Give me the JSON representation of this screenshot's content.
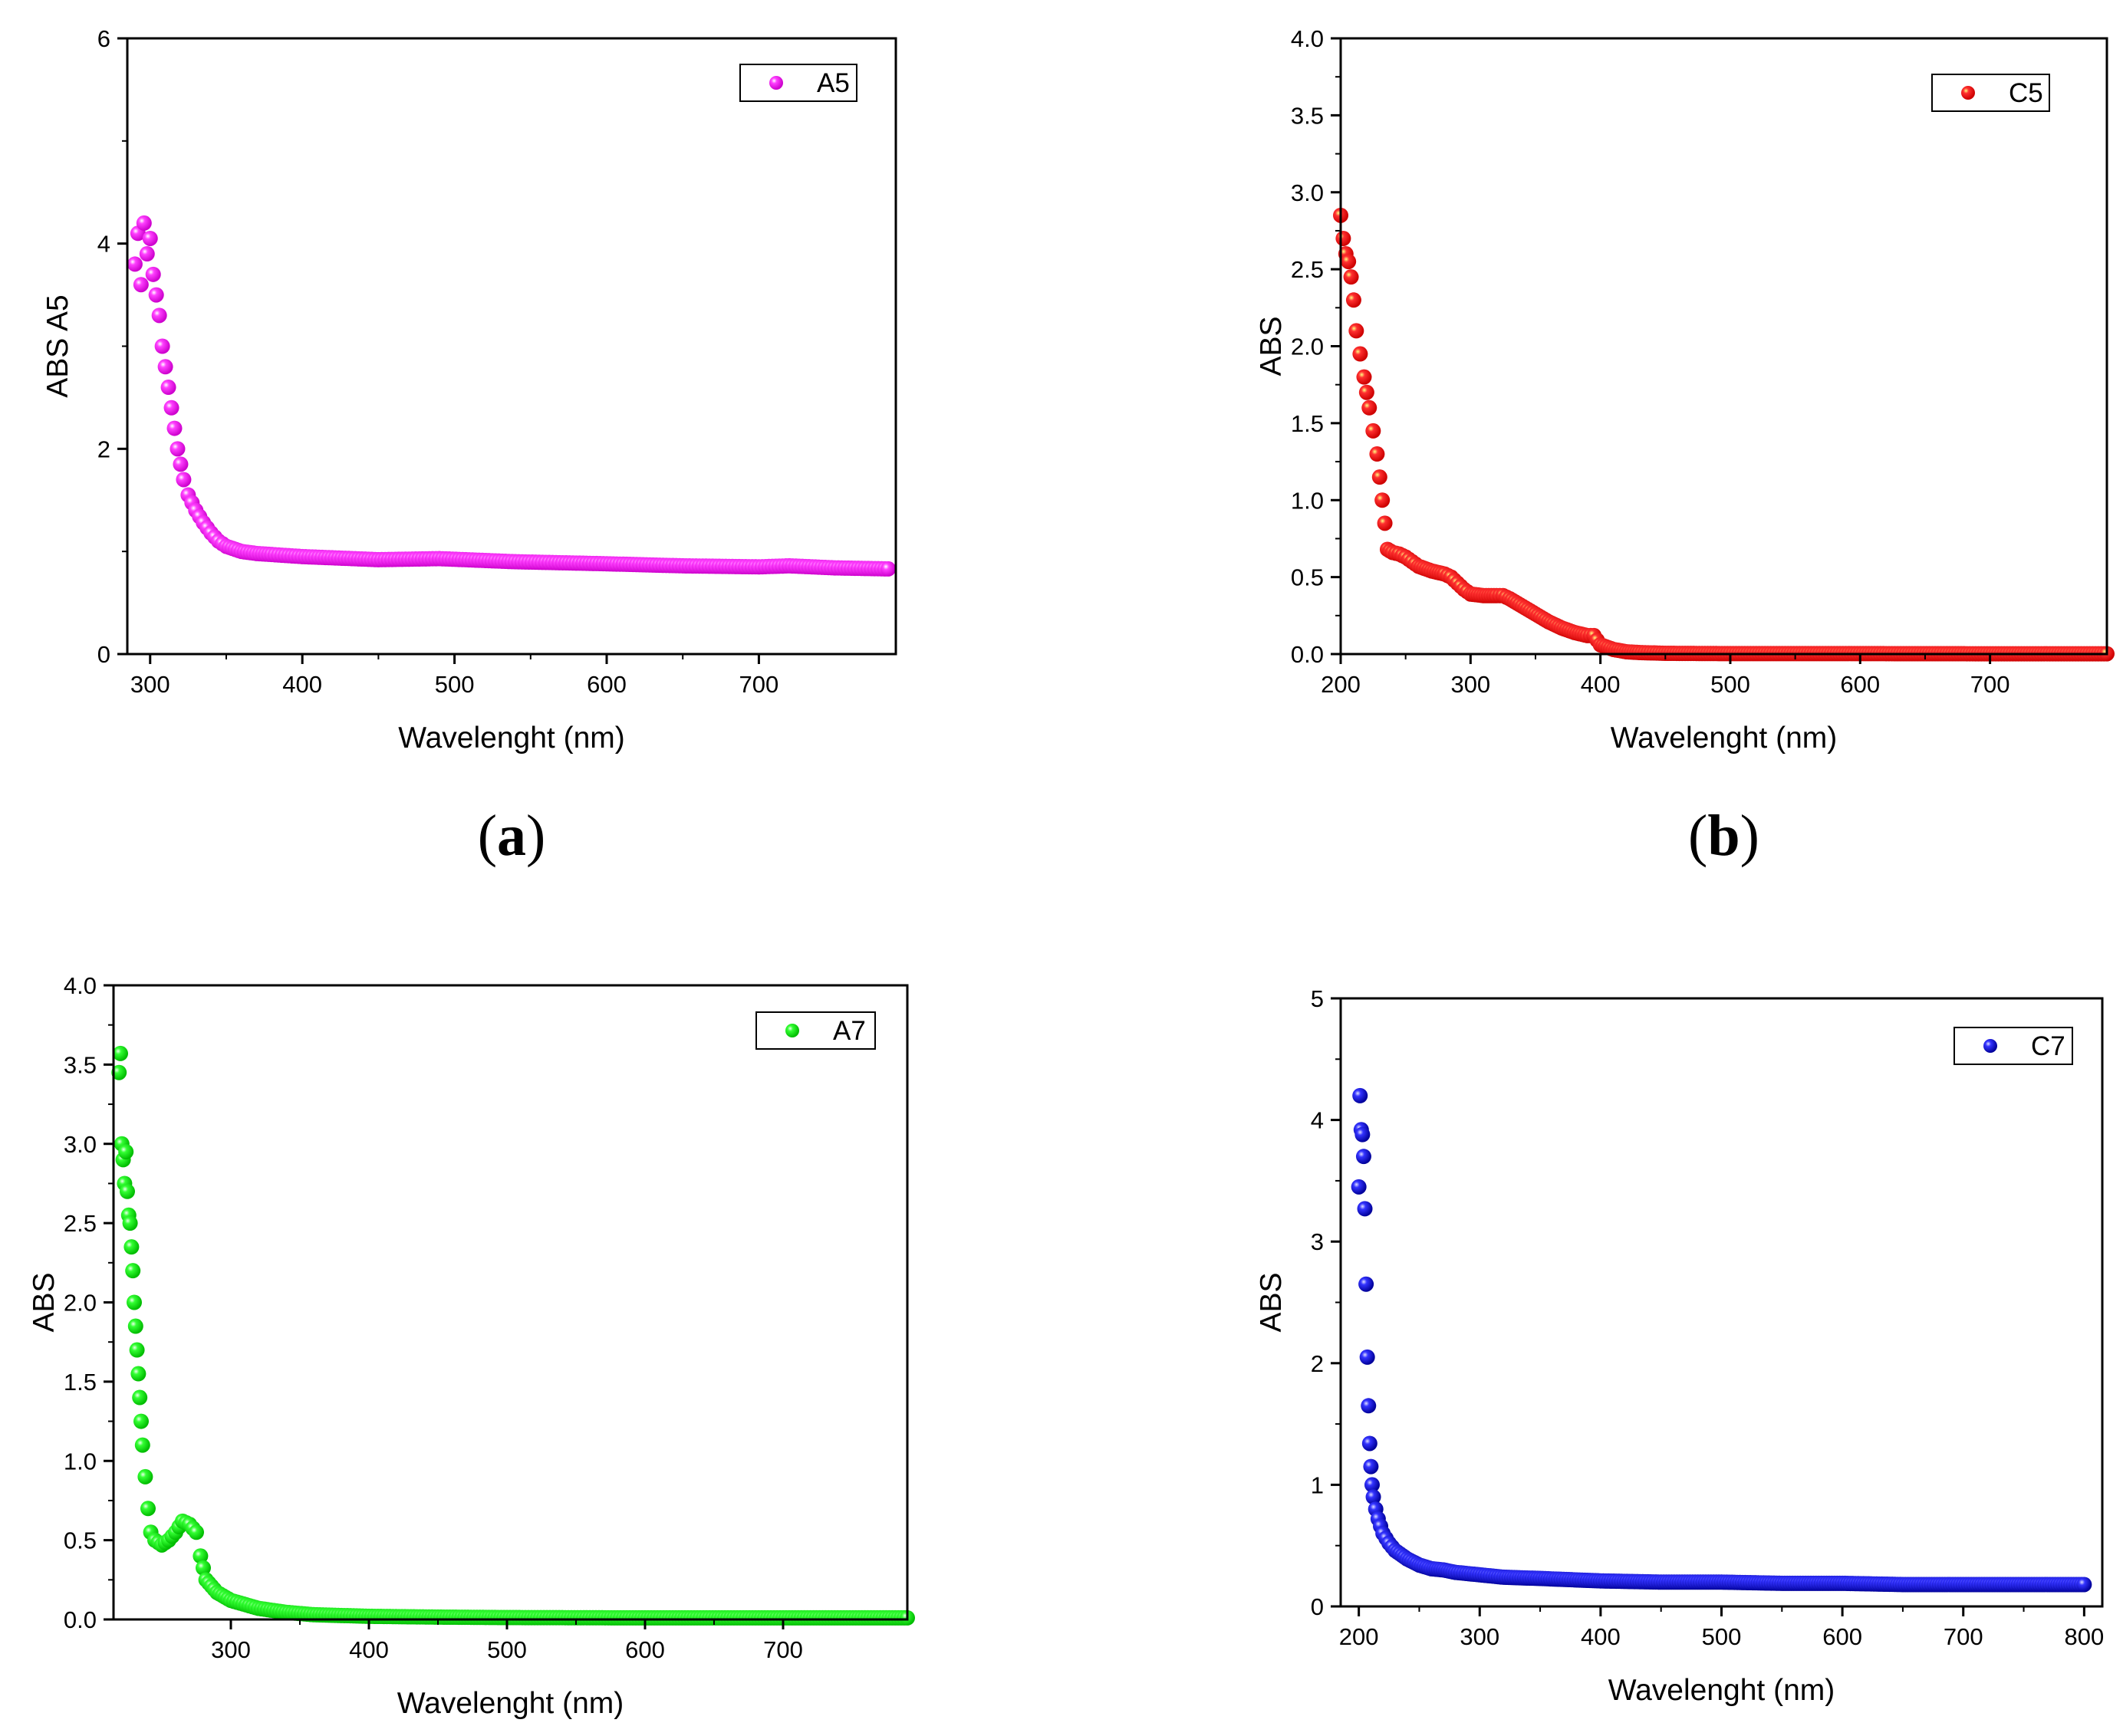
{
  "colors": {
    "a": "#ff00ff",
    "b": "#ff0000",
    "c": "#00ee00",
    "d": "#0000ff"
  },
  "chart_data": [
    {
      "id": "a",
      "panel_label": {
        "open": "(",
        "letter": "a",
        "close": ")"
      },
      "type": "scatter",
      "title": "",
      "xlabel": "Wavelenght (nm)",
      "ylabel": "ABS A5",
      "xlim": [
        285,
        790
      ],
      "ylim": [
        0,
        6
      ],
      "xticks": [
        300,
        400,
        500,
        600,
        700
      ],
      "xtick_labels": [
        "300",
        "400",
        "500",
        "600",
        "700"
      ],
      "yticks": [
        0,
        2,
        4,
        6
      ],
      "ytick_labels": [
        "0",
        "2",
        "4",
        "6"
      ],
      "legend": {
        "label": "A5",
        "position": "top-right"
      },
      "series": [
        {
          "name": "A5",
          "x": [
            290,
            292,
            294,
            296,
            298,
            300,
            302,
            304,
            306,
            308,
            310,
            312,
            314,
            316,
            318,
            320,
            322,
            325,
            330,
            335,
            340,
            345,
            350,
            360,
            370,
            380,
            400,
            450,
            490,
            540,
            600,
            650,
            700,
            720,
            750,
            785
          ],
          "y": [
            3.8,
            4.1,
            3.6,
            4.2,
            3.9,
            4.05,
            3.7,
            3.5,
            3.3,
            3.0,
            2.8,
            2.6,
            2.4,
            2.2,
            2.0,
            1.85,
            1.7,
            1.55,
            1.4,
            1.28,
            1.18,
            1.1,
            1.05,
            1.0,
            0.98,
            0.97,
            0.95,
            0.92,
            0.93,
            0.9,
            0.88,
            0.86,
            0.85,
            0.86,
            0.84,
            0.83
          ]
        }
      ]
    },
    {
      "id": "b",
      "panel_label": {
        "open": "(",
        "letter": "b",
        "close": ")"
      },
      "type": "scatter",
      "title": "",
      "xlabel": "Wavelenght (nm)",
      "ylabel": "ABS",
      "xlim": [
        200,
        790
      ],
      "ylim": [
        0,
        4
      ],
      "xticks": [
        200,
        300,
        400,
        500,
        600,
        700
      ],
      "xtick_labels": [
        "200",
        "300",
        "400",
        "500",
        "600",
        "700"
      ],
      "yticks": [
        0,
        0.5,
        1,
        1.5,
        2,
        2.5,
        3,
        3.5,
        4
      ],
      "ytick_labels": [
        "0.0",
        "0.5",
        "1.0",
        "1.5",
        "2.0",
        "2.5",
        "3.0",
        "3.5",
        "4.0"
      ],
      "legend": {
        "label": "C5",
        "position": "top-right"
      },
      "series": [
        {
          "name": "C5",
          "x": [
            200,
            202,
            204,
            206,
            208,
            210,
            212,
            215,
            218,
            220,
            222,
            225,
            228,
            230,
            232,
            234,
            236,
            240,
            245,
            250,
            255,
            260,
            270,
            280,
            285,
            290,
            295,
            300,
            310,
            320,
            325,
            330,
            340,
            350,
            360,
            370,
            380,
            390,
            395,
            400,
            410,
            420,
            430,
            450,
            500,
            600,
            700,
            790
          ],
          "y": [
            2.85,
            2.7,
            2.6,
            2.55,
            2.45,
            2.3,
            2.1,
            1.95,
            1.8,
            1.7,
            1.6,
            1.45,
            1.3,
            1.15,
            1.0,
            0.85,
            0.68,
            0.66,
            0.65,
            0.63,
            0.6,
            0.57,
            0.54,
            0.52,
            0.5,
            0.46,
            0.42,
            0.39,
            0.38,
            0.38,
            0.38,
            0.36,
            0.31,
            0.26,
            0.21,
            0.17,
            0.14,
            0.12,
            0.12,
            0.06,
            0.03,
            0.015,
            0.01,
            0.005,
            0.003,
            0.003,
            0.002,
            0.002
          ]
        }
      ]
    },
    {
      "id": "c",
      "panel_label": null,
      "type": "scatter",
      "title": "",
      "xlabel": "Wavelenght (nm)",
      "ylabel": "ABS",
      "xlim": [
        215,
        790
      ],
      "ylim": [
        0,
        4
      ],
      "xticks": [
        300,
        400,
        500,
        600,
        700
      ],
      "xtick_labels": [
        "300",
        "400",
        "500",
        "600",
        "700"
      ],
      "yticks": [
        0,
        0.5,
        1,
        1.5,
        2,
        2.5,
        3,
        3.5,
        4
      ],
      "ytick_labels": [
        "0.0",
        "0.5",
        "1.0",
        "1.5",
        "2.0",
        "2.5",
        "3.0",
        "3.5",
        "4.0"
      ],
      "legend": {
        "label": "A7",
        "position": "top-right"
      },
      "series": [
        {
          "name": "A7",
          "x": [
            219,
            220,
            221,
            222,
            223,
            224,
            225,
            226,
            227,
            228,
            229,
            230,
            231,
            232,
            233,
            234,
            235,
            236,
            238,
            240,
            242,
            245,
            250,
            255,
            260,
            265,
            270,
            275,
            278,
            282,
            290,
            300,
            320,
            340,
            360,
            400,
            450,
            500,
            600,
            700,
            790
          ],
          "y": [
            3.45,
            3.57,
            3.0,
            2.9,
            2.75,
            2.95,
            2.7,
            2.55,
            2.5,
            2.35,
            2.2,
            2.0,
            1.85,
            1.7,
            1.55,
            1.4,
            1.25,
            1.1,
            0.9,
            0.7,
            0.55,
            0.5,
            0.47,
            0.5,
            0.55,
            0.62,
            0.6,
            0.55,
            0.4,
            0.25,
            0.17,
            0.12,
            0.07,
            0.045,
            0.03,
            0.02,
            0.015,
            0.012,
            0.01,
            0.01,
            0.01
          ]
        }
      ]
    },
    {
      "id": "d",
      "panel_label": null,
      "type": "scatter",
      "title": "",
      "xlabel": "Wavelenght (nm)",
      "ylabel": "ABS",
      "xlim": [
        185,
        815
      ],
      "ylim": [
        0,
        5
      ],
      "xticks": [
        200,
        300,
        400,
        500,
        600,
        700,
        800
      ],
      "xtick_labels": [
        "200",
        "300",
        "400",
        "500",
        "600",
        "700",
        "800"
      ],
      "yticks": [
        0,
        1,
        2,
        3,
        4,
        5
      ],
      "ytick_labels": [
        "0",
        "1",
        "2",
        "3",
        "4",
        "5"
      ],
      "legend": {
        "label": "C7",
        "position": "top-right"
      },
      "series": [
        {
          "name": "C7",
          "x": [
            200,
            201,
            202,
            203,
            204,
            205,
            206,
            207,
            208,
            209,
            210,
            211,
            212,
            214,
            216,
            218,
            220,
            225,
            230,
            240,
            250,
            260,
            270,
            280,
            300,
            320,
            350,
            400,
            450,
            500,
            550,
            600,
            650,
            700,
            750,
            800
          ],
          "y": [
            3.45,
            4.2,
            3.92,
            3.88,
            3.7,
            3.27,
            2.65,
            2.05,
            1.65,
            1.34,
            1.15,
            1.0,
            0.9,
            0.8,
            0.72,
            0.66,
            0.6,
            0.52,
            0.46,
            0.39,
            0.34,
            0.31,
            0.3,
            0.28,
            0.26,
            0.24,
            0.23,
            0.21,
            0.2,
            0.2,
            0.19,
            0.19,
            0.18,
            0.18,
            0.18,
            0.18
          ]
        }
      ]
    }
  ]
}
